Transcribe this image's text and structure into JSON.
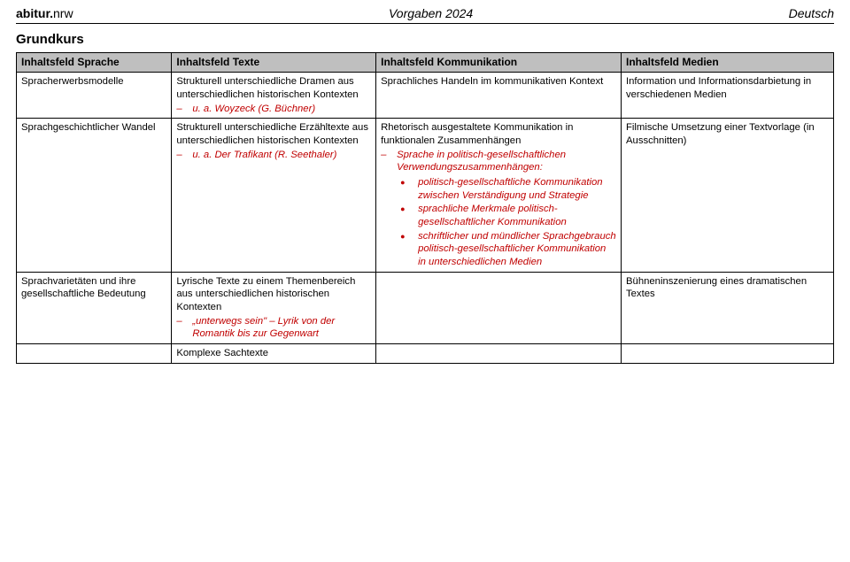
{
  "header": {
    "left_bold": "abitur.",
    "left_light": "nrw",
    "center": "Vorgaben 2024",
    "right": "Deutsch"
  },
  "section_title": "Grundkurs",
  "colors": {
    "accent": "#c00000",
    "header_bg": "#bfbfbf",
    "border": "#000000",
    "text": "#000000",
    "bg": "#ffffff"
  },
  "table": {
    "head": {
      "c1": "Inhaltsfeld Sprache",
      "c2": "Inhaltsfeld Texte",
      "c3": "Inhaltsfeld Kommunikation",
      "c4": "Inhaltsfeld Medien"
    },
    "r1": {
      "c1": "Spracherwerbsmodelle",
      "c2_p": "Strukturell unterschiedliche Dramen aus unterschiedlichen historischen Kontexten",
      "c2_li": "u. a. Woyzeck (G. Büchner)",
      "c3": "Sprachliches Handeln im kommunikativen Kontext",
      "c4": "Information und Informationsdarbietung in verschiedenen Medien"
    },
    "r2": {
      "c1": "Sprachgeschichtlicher Wandel",
      "c2_p": "Strukturell unterschiedliche Erzähltexte aus unterschiedlichen historischen Kontexten",
      "c2_li": "u. a. Der Trafikant (R. Seethaler)",
      "c3_p": "Rhetorisch ausgestaltete Kommunikation in funktionalen Zusammenhängen",
      "c3_li": "Sprache in politisch-gesellschaftlichen Verwendungszusammenhängen:",
      "c3_d1": "politisch-gesellschaftliche Kommunikation zwischen Verständigung und Strategie",
      "c3_d2": "sprachliche Merkmale politisch-gesellschaftlicher Kommunikation",
      "c3_d3": "schriftlicher und mündlicher Sprachgebrauch politisch-gesellschaftlicher Kommunikation in unterschiedlichen Medien",
      "c4": "Filmische Umsetzung einer Textvorlage (in Ausschnitten)"
    },
    "r3": {
      "c1": "Sprachvarietäten und ihre gesellschaftliche Bedeutung",
      "c2_p": "Lyrische Texte zu einem Themenbereich aus unterschiedlichen historischen Kontexten",
      "c2_li": "„unterwegs sein\" – Lyrik von der Romantik bis zur Gegenwart",
      "c4": "Bühneninszenierung eines dramatischen Textes"
    },
    "r4": {
      "c2": "Komplexe Sachtexte"
    }
  }
}
